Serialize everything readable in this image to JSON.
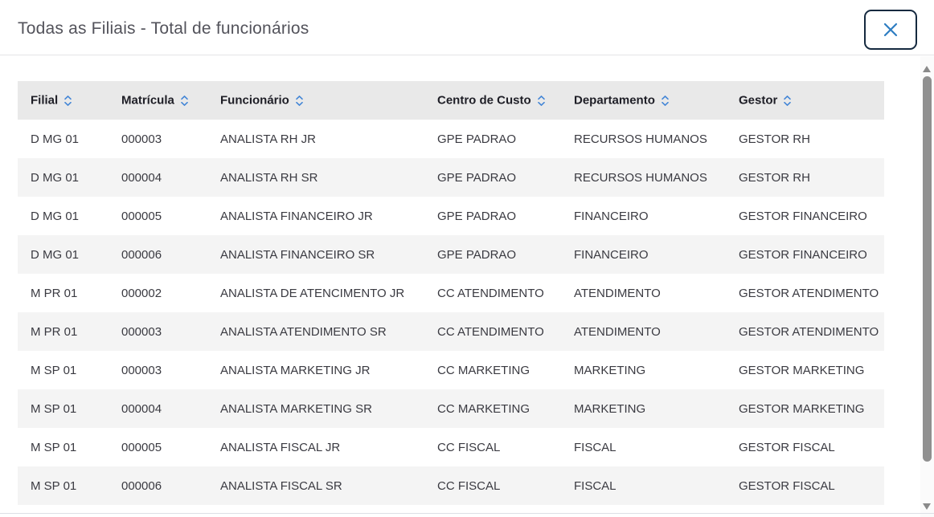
{
  "modal": {
    "title": "Todas as Filiais - Total de funcionários"
  },
  "table": {
    "columns": [
      {
        "key": "filial",
        "label": "Filial"
      },
      {
        "key": "matricula",
        "label": "Matrícula"
      },
      {
        "key": "funcionario",
        "label": "Funcionário"
      },
      {
        "key": "centro-de-custo",
        "label": "Centro de Custo"
      },
      {
        "key": "departamento",
        "label": "Departamento"
      },
      {
        "key": "gestor",
        "label": "Gestor"
      }
    ],
    "rows": [
      [
        "D MG 01",
        "000003",
        "ANALISTA RH JR",
        "GPE PADRAO",
        "RECURSOS HUMANOS",
        "GESTOR RH"
      ],
      [
        "D MG 01",
        "000004",
        "ANALISTA RH SR",
        "GPE PADRAO",
        "RECURSOS HUMANOS",
        "GESTOR RH"
      ],
      [
        "D MG 01",
        "000005",
        "ANALISTA FINANCEIRO JR",
        "GPE PADRAO",
        "FINANCEIRO",
        "GESTOR FINANCEIRO"
      ],
      [
        "D MG 01",
        "000006",
        "ANALISTA FINANCEIRO SR",
        "GPE PADRAO",
        "FINANCEIRO",
        "GESTOR FINANCEIRO"
      ],
      [
        "M PR 01",
        "000002",
        "ANALISTA DE ATENCIMENTO JR",
        "CC ATENDIMENTO",
        "ATENDIMENTO",
        "GESTOR ATENDIMENTO"
      ],
      [
        "M PR 01",
        "000003",
        "ANALISTA ATENDIMENTO SR",
        "CC ATENDIMENTO",
        "ATENDIMENTO",
        "GESTOR ATENDIMENTO"
      ],
      [
        "M SP 01",
        "000003",
        "ANALISTA MARKETING JR",
        "CC MARKETING",
        "MARKETING",
        "GESTOR MARKETING"
      ],
      [
        "M SP 01",
        "000004",
        "ANALISTA MARKETING SR",
        "CC MARKETING",
        "MARKETING",
        "GESTOR MARKETING"
      ],
      [
        "M SP 01",
        "000005",
        "ANALISTA FISCAL JR",
        "CC FISCAL",
        "FISCAL",
        "GESTOR FISCAL"
      ],
      [
        "M SP 01",
        "000006",
        "ANALISTA FISCAL SR",
        "CC FISCAL",
        "FISCAL",
        "GESTOR FISCAL"
      ]
    ]
  },
  "icons": {
    "close": "close-icon",
    "sort": "sort-icon",
    "scroll_up": "scroll-up-arrow-icon",
    "scroll_down": "scroll-down-arrow-icon"
  },
  "colors": {
    "sort_icon_blue": "#4285d6",
    "close_icon_blue": "#2d7dc2",
    "close_border_navy": "#15293f",
    "header_bg": "#e9e9e9",
    "row_alt_bg": "#f4f4f4",
    "title_text": "#53535b",
    "header_text": "#1e1e26",
    "row_text": "#3a3a41",
    "scrollbar_thumb": "#8f8f8f"
  }
}
